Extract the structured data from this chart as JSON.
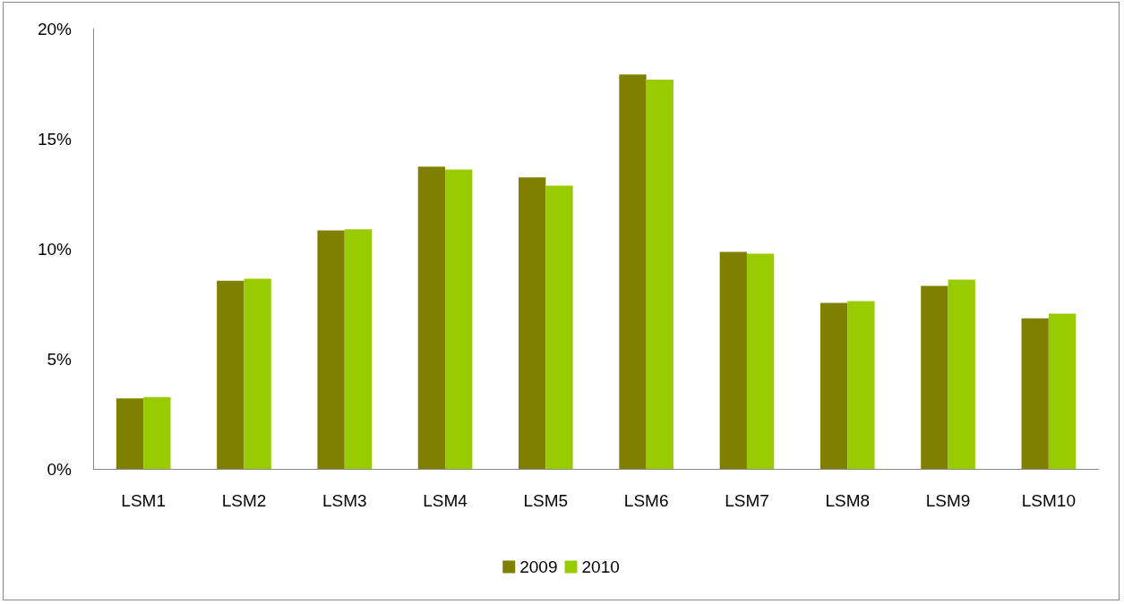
{
  "chart_data": {
    "type": "bar",
    "categories": [
      "LSM1",
      "LSM2",
      "LSM3",
      "LSM4",
      "LSM5",
      "LSM6",
      "LSM7",
      "LSM8",
      "LSM9",
      "LSM10"
    ],
    "series": [
      {
        "name": "2009",
        "color": "#808000",
        "values": [
          3.2,
          8.55,
          10.83,
          13.73,
          13.24,
          17.92,
          9.86,
          7.54,
          8.31,
          6.84
        ]
      },
      {
        "name": "2010",
        "color": "#99cc00",
        "values": [
          3.26,
          8.64,
          10.88,
          13.6,
          12.87,
          17.68,
          9.78,
          7.62,
          8.6,
          7.05
        ]
      }
    ],
    "ylim": [
      0,
      20
    ],
    "yticks": [
      {
        "value": 0,
        "label": "0%"
      },
      {
        "value": 5,
        "label": "5%"
      },
      {
        "value": 10,
        "label": "10%"
      },
      {
        "value": 15,
        "label": "15%"
      },
      {
        "value": 20,
        "label": "20%"
      }
    ],
    "grid": false,
    "legend": "bottom"
  }
}
